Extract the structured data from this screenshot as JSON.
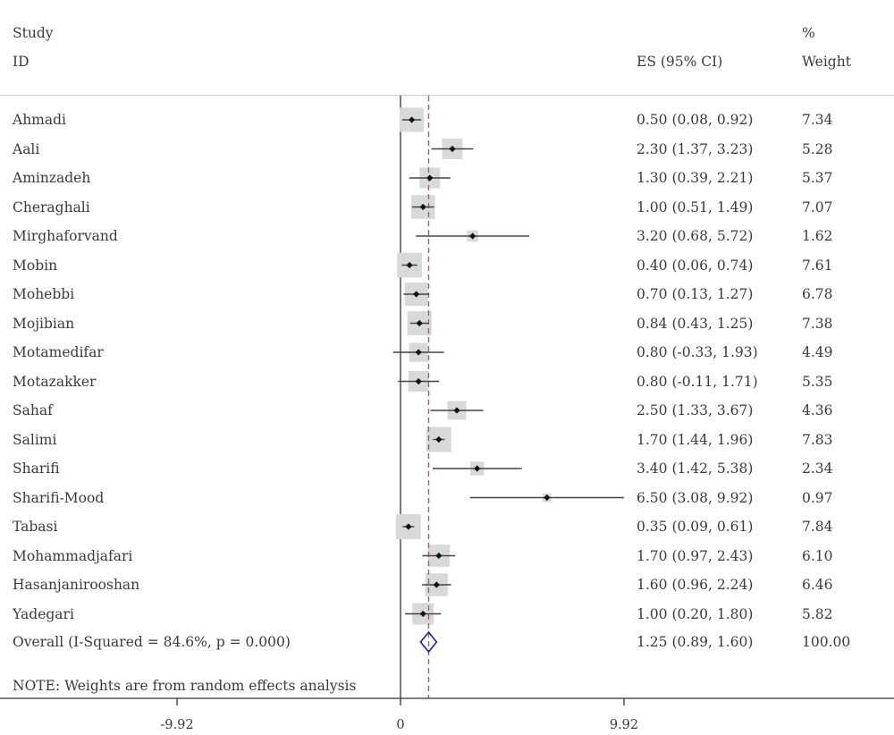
{
  "header": {
    "study_label": "Study",
    "id_label": "ID",
    "es_label": "ES (95% CI)",
    "pct_label": "%",
    "weight_label": "Weight"
  },
  "note": "NOTE: Weights are from random effects analysis",
  "overall": {
    "label": "Overall  (I-Squared = 84.6%, p = 0.000)",
    "es": 1.25,
    "lo": 0.89,
    "hi": 1.6,
    "ci_text": "1.25 (0.89, 1.60)",
    "weight_text": "100.00"
  },
  "colors": {
    "diamond": "#1f1fa8",
    "ref_line": "#c0506a",
    "box": "#d9d9d9",
    "axis": "#333333"
  },
  "chart_data": {
    "type": "forest",
    "xlim": [
      -9.92,
      9.92
    ],
    "x_ticks": [
      "-9.92",
      "0",
      "9.92"
    ],
    "x_tick_values": [
      -9.92,
      0,
      9.92
    ],
    "null_line": 0,
    "summary_line": 1.25,
    "studies": [
      {
        "name": "Ahmadi",
        "es": 0.5,
        "lo": 0.08,
        "hi": 0.92,
        "ci_text": "0.50 (0.08, 0.92)",
        "weight": 7.34,
        "weight_text": "7.34"
      },
      {
        "name": "Aali",
        "es": 2.3,
        "lo": 1.37,
        "hi": 3.23,
        "ci_text": "2.30 (1.37, 3.23)",
        "weight": 5.28,
        "weight_text": "5.28"
      },
      {
        "name": "Aminzadeh",
        "es": 1.3,
        "lo": 0.39,
        "hi": 2.21,
        "ci_text": "1.30 (0.39, 2.21)",
        "weight": 5.37,
        "weight_text": "5.37"
      },
      {
        "name": "Cheraghali",
        "es": 1.0,
        "lo": 0.51,
        "hi": 1.49,
        "ci_text": "1.00 (0.51, 1.49)",
        "weight": 7.07,
        "weight_text": "7.07"
      },
      {
        "name": "Mirghaforvand",
        "es": 3.2,
        "lo": 0.68,
        "hi": 5.72,
        "ci_text": "3.20 (0.68, 5.72)",
        "weight": 1.62,
        "weight_text": "1.62"
      },
      {
        "name": "Mobin",
        "es": 0.4,
        "lo": 0.06,
        "hi": 0.74,
        "ci_text": "0.40 (0.06, 0.74)",
        "weight": 7.61,
        "weight_text": "7.61"
      },
      {
        "name": "Mohebbi",
        "es": 0.7,
        "lo": 0.13,
        "hi": 1.27,
        "ci_text": "0.70 (0.13, 1.27)",
        "weight": 6.78,
        "weight_text": "6.78"
      },
      {
        "name": "Mojibian",
        "es": 0.84,
        "lo": 0.43,
        "hi": 1.25,
        "ci_text": "0.84 (0.43, 1.25)",
        "weight": 7.38,
        "weight_text": "7.38"
      },
      {
        "name": "Motamedifar",
        "es": 0.8,
        "lo": -0.33,
        "hi": 1.93,
        "ci_text": "0.80 (-0.33, 1.93)",
        "weight": 4.49,
        "weight_text": "4.49"
      },
      {
        "name": "Motazakker",
        "es": 0.8,
        "lo": -0.11,
        "hi": 1.71,
        "ci_text": "0.80 (-0.11, 1.71)",
        "weight": 5.35,
        "weight_text": "5.35"
      },
      {
        "name": "Sahaf",
        "es": 2.5,
        "lo": 1.33,
        "hi": 3.67,
        "ci_text": "2.50 (1.33, 3.67)",
        "weight": 4.36,
        "weight_text": "4.36"
      },
      {
        "name": "Salimi",
        "es": 1.7,
        "lo": 1.44,
        "hi": 1.96,
        "ci_text": "1.70 (1.44, 1.96)",
        "weight": 7.83,
        "weight_text": "7.83"
      },
      {
        "name": "Sharifi",
        "es": 3.4,
        "lo": 1.42,
        "hi": 5.38,
        "ci_text": "3.40 (1.42, 5.38)",
        "weight": 2.34,
        "weight_text": "2.34"
      },
      {
        "name": "Sharifi-Mood",
        "es": 6.5,
        "lo": 3.08,
        "hi": 9.92,
        "ci_text": "6.50 (3.08, 9.92)",
        "weight": 0.97,
        "weight_text": "0.97"
      },
      {
        "name": "Tabasi",
        "es": 0.35,
        "lo": 0.09,
        "hi": 0.61,
        "ci_text": "0.35 (0.09, 0.61)",
        "weight": 7.84,
        "weight_text": "7.84"
      },
      {
        "name": "Mohammadjafari",
        "es": 1.7,
        "lo": 0.97,
        "hi": 2.43,
        "ci_text": "1.70 (0.97, 2.43)",
        "weight": 6.1,
        "weight_text": "6.10"
      },
      {
        "name": "Hasanjanirooshan",
        "es": 1.6,
        "lo": 0.96,
        "hi": 2.24,
        "ci_text": "1.60 (0.96, 2.24)",
        "weight": 6.46,
        "weight_text": "6.46"
      },
      {
        "name": "Yadegari",
        "es": 1.0,
        "lo": 0.2,
        "hi": 1.8,
        "ci_text": "1.00 (0.20, 1.80)",
        "weight": 5.82,
        "weight_text": "5.82"
      }
    ]
  }
}
